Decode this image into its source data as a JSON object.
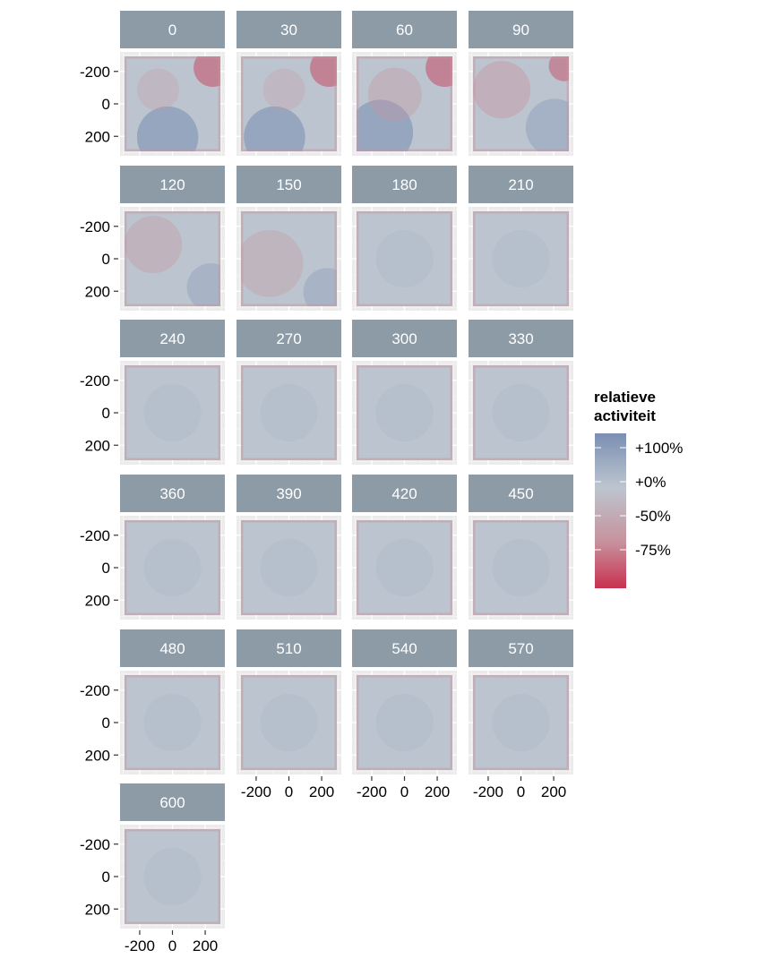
{
  "chart_data": {
    "type": "heatmap",
    "facet_by": "time",
    "panels": [
      "0",
      "30",
      "60",
      "90",
      "120",
      "150",
      "180",
      "210",
      "240",
      "270",
      "300",
      "330",
      "360",
      "390",
      "420",
      "450",
      "480",
      "510",
      "540",
      "570",
      "600"
    ],
    "ncol": 4,
    "x_range": [
      -320,
      320
    ],
    "y_range": [
      -320,
      320
    ],
    "x_ticks": [
      -200,
      0,
      200
    ],
    "y_ticks": [
      -200,
      0,
      200
    ],
    "x_tick_labels": [
      "-200",
      "0",
      "200"
    ],
    "y_tick_labels": [
      "200",
      "0",
      "-200"
    ],
    "xlabel": "",
    "ylabel": "",
    "legend": {
      "title": "relatieve activiteit",
      "title_lines": [
        "relatieve",
        "activiteit"
      ],
      "labels": [
        "+100%",
        "+0%",
        "-50%",
        "-75%"
      ],
      "colors": {
        "high": "#7b8fb3",
        "mid": "#bcc5cf",
        "low": "#c8314f"
      },
      "placement": "right"
    },
    "colors": {
      "strip": "#8d9ba6",
      "panel_background": "#ebebeb",
      "grid": "#f7f7f7"
    }
  }
}
